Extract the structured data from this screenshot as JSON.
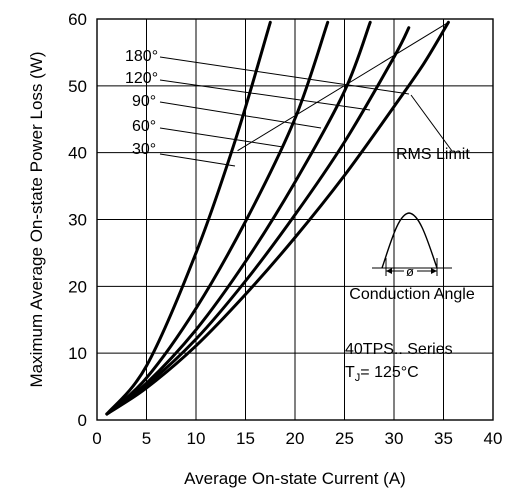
{
  "chart_data": {
    "type": "line",
    "title": "",
    "xlabel": "Average On-state Current (A)",
    "ylabel": "Maximum Average On-state Power Loss (W)",
    "xlim": [
      0,
      40
    ],
    "ylim": [
      0,
      60
    ],
    "x_ticks": [
      "0",
      "5",
      "10",
      "15",
      "20",
      "25",
      "30",
      "35",
      "40"
    ],
    "y_ticks": [
      "0",
      "10",
      "20",
      "30",
      "40",
      "50",
      "60"
    ],
    "grid": true,
    "line_color": "#000000",
    "series": [
      {
        "name": "180°",
        "x": [
          1,
          5,
          10,
          15,
          20,
          25,
          30,
          33,
          35.5
        ],
        "y": [
          0.9,
          4.8,
          11.1,
          18.8,
          27.3,
          36.6,
          46.9,
          53.3,
          59.5
        ]
      },
      {
        "name": "120°",
        "x": [
          1,
          5,
          10,
          15,
          20,
          25,
          30,
          31.5
        ],
        "y": [
          0.9,
          5.2,
          12.1,
          20.8,
          30.7,
          41.6,
          54.3,
          58.7
        ]
      },
      {
        "name": "90°",
        "x": [
          1,
          5,
          10,
          15,
          20,
          25,
          27.6
        ],
        "y": [
          0.9,
          5.5,
          13.5,
          23.7,
          35.6,
          49.2,
          59.5
        ]
      },
      {
        "name": "60°",
        "x": [
          1,
          5,
          10,
          15,
          20,
          23.3
        ],
        "y": [
          0.9,
          6.3,
          16.7,
          29.7,
          45.1,
          59.5
        ]
      },
      {
        "name": "30°",
        "x": [
          1,
          5,
          10,
          14,
          17.5
        ],
        "y": [
          0.9,
          8.1,
          25.0,
          42.0,
          59.5
        ]
      }
    ],
    "rms_limit": {
      "label": "RMS Limit",
      "x": [
        14.2,
        35.5
      ],
      "y": [
        40.3,
        59.5
      ]
    },
    "conduction_inset": {
      "symbol": "ø",
      "label": "Conduction Angle"
    },
    "annotations": {
      "series_line": "40TPS.. Series",
      "temp_prefix": "T",
      "temp_sub": "J",
      "temp_value": "= 125°C"
    }
  }
}
